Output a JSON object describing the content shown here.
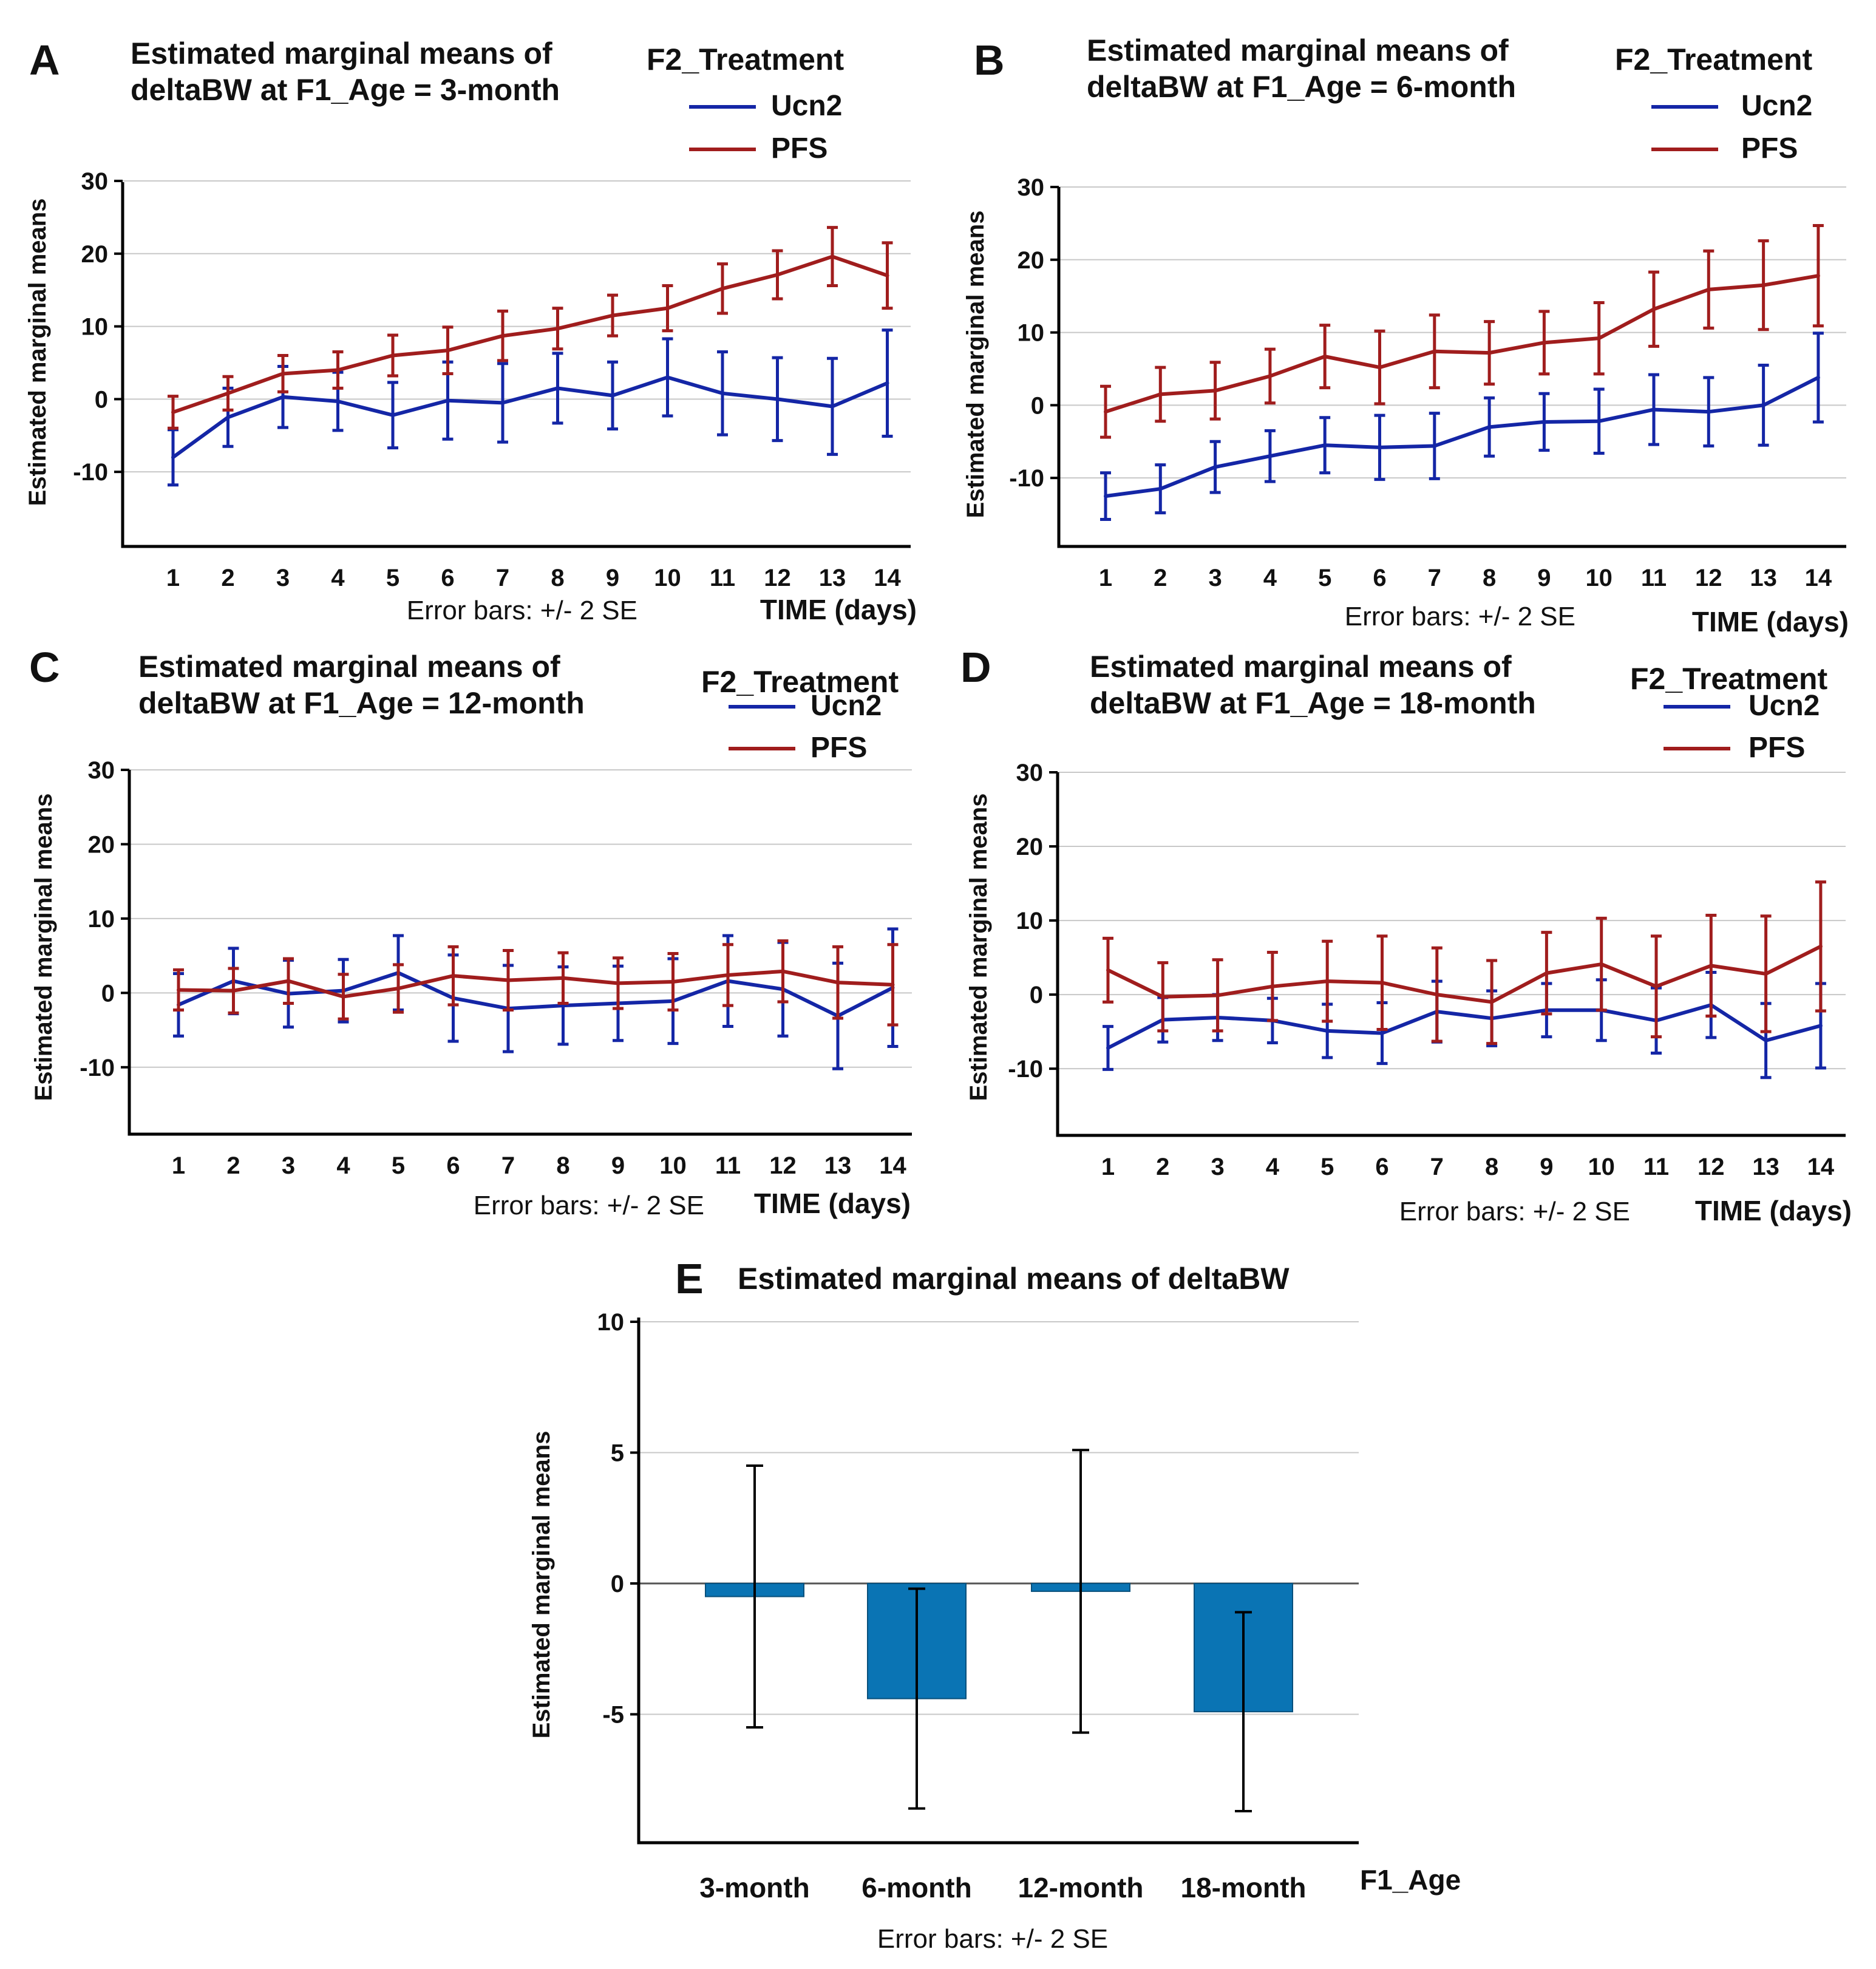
{
  "figure": {
    "colors": {
      "Ucn2": "#1426a6",
      "PFS": "#a01d1d",
      "bar": "#0a74b4",
      "grid": "#c8c8c8"
    },
    "common": {
      "ylabel": "Estimated marginal means",
      "xlabel": "TIME (days)",
      "footnote": "Error bars: +/- 2 SE",
      "legend_title": "F2_Treatment",
      "legend_labels": [
        "Ucn2",
        "PFS"
      ]
    }
  },
  "chart_data": [
    {
      "id": "A",
      "type": "line",
      "panel_letter": "A",
      "title_line1": "Estimated marginal means of",
      "title_line2": "deltaBW at F1_Age = 3-month",
      "x": [
        1,
        2,
        3,
        4,
        5,
        6,
        7,
        8,
        9,
        10,
        11,
        12,
        13,
        14
      ],
      "xticks": [
        "1",
        "2",
        "3",
        "4",
        "5",
        "6",
        "7",
        "8",
        "9",
        "10",
        "11",
        "12",
        "13",
        "14"
      ],
      "yticks": [
        -10,
        0,
        10,
        20,
        30
      ],
      "ylim": [
        -19,
        30
      ],
      "grid": true,
      "legend": "top-right",
      "series": [
        {
          "name": "Ucn2",
          "values": [
            -8,
            -2.5,
            0.3,
            -0.3,
            -2.2,
            -0.2,
            -0.5,
            1.5,
            0.5,
            3,
            0.8,
            0,
            -1,
            2.2
          ],
          "err": [
            3.8,
            4,
            4.2,
            4,
            4.5,
            5.3,
            5.4,
            4.8,
            4.6,
            5.3,
            5.7,
            5.7,
            6.6,
            7.3
          ]
        },
        {
          "name": "PFS",
          "values": [
            -1.8,
            0.8,
            3.5,
            4,
            6,
            6.7,
            8.7,
            9.7,
            11.5,
            12.5,
            15.2,
            17.1,
            19.6,
            17
          ]
        },
        {
          "name": "PFS-err",
          "values": [
            2.2,
            2.3,
            2.5,
            2.5,
            2.8,
            3.2,
            3.4,
            2.8,
            2.8,
            3.1,
            3.4,
            3.3,
            4,
            4.5
          ]
        }
      ]
    },
    {
      "id": "B",
      "type": "line",
      "panel_letter": "B",
      "title_line1": "Estimated marginal means of",
      "title_line2": "deltaBW  at F1_Age = 6-month",
      "x": [
        1,
        2,
        3,
        4,
        5,
        6,
        7,
        8,
        9,
        10,
        11,
        12,
        13,
        14
      ],
      "xticks": [
        "1",
        "2",
        "3",
        "4",
        "5",
        "6",
        "7",
        "8",
        "9",
        "10",
        "11",
        "12",
        "13",
        "14"
      ],
      "yticks": [
        -10,
        0,
        10,
        20,
        30
      ],
      "ylim": [
        -19,
        30
      ],
      "grid": true,
      "legend": "top-right",
      "series": [
        {
          "name": "Ucn2",
          "values": [
            -12.5,
            -11.5,
            -8.5,
            -7,
            -5.5,
            -5.8,
            -5.6,
            -3,
            -2.3,
            -2.2,
            -0.6,
            -0.9,
            0,
            3.8
          ],
          "err": [
            3.2,
            3.3,
            3.5,
            3.5,
            3.8,
            4.4,
            4.5,
            4,
            3.9,
            4.4,
            4.8,
            4.7,
            5.5,
            6.1
          ]
        },
        {
          "name": "PFS",
          "values": [
            -0.9,
            1.5,
            2,
            4,
            6.7,
            5.2,
            7.4,
            7.2,
            8.6,
            9.2,
            13.2,
            15.9,
            16.5,
            17.8
          ]
        },
        {
          "name": "PFS-err",
          "values": [
            3.5,
            3.7,
            3.9,
            3.7,
            4.3,
            5,
            5,
            4.3,
            4.3,
            4.9,
            5.1,
            5.3,
            6.1,
            6.9
          ]
        }
      ]
    },
    {
      "id": "C",
      "type": "line",
      "panel_letter": "C",
      "title_line1": "Estimated marginal means of",
      "title_line2": "deltaBW at F1_Age = 12-month",
      "x": [
        1,
        2,
        3,
        4,
        5,
        6,
        7,
        8,
        9,
        10,
        11,
        12,
        13,
        14
      ],
      "xticks": [
        "1",
        "2",
        "3",
        "4",
        "5",
        "6",
        "7",
        "8",
        "9",
        "10",
        "11",
        "12",
        "13",
        "14"
      ],
      "yticks": [
        -10,
        0,
        10,
        20,
        30
      ],
      "ylim": [
        -19,
        30
      ],
      "grid": true,
      "legend": "top-right",
      "series": [
        {
          "name": "Ucn2",
          "values": [
            -1.6,
            1.6,
            -0.1,
            0.3,
            2.7,
            -0.7,
            -2.1,
            -1.7,
            -1.4,
            -1.1,
            1.6,
            0.5,
            -3.1,
            0.7
          ],
          "err": [
            4.2,
            4.4,
            4.5,
            4.2,
            5,
            5.8,
            5.8,
            5.2,
            5,
            5.7,
            6.1,
            6.3,
            7.1,
            7.9
          ]
        },
        {
          "name": "PFS",
          "values": [
            0.4,
            0.3,
            1.6,
            -0.5,
            0.6,
            2.3,
            1.7,
            2,
            1.3,
            1.5,
            2.4,
            2.9,
            1.4,
            1.1
          ]
        },
        {
          "name": "PFS-err",
          "values": [
            2.7,
            3,
            3,
            3,
            3.2,
            3.9,
            4,
            3.4,
            3.4,
            3.8,
            4.1,
            4.1,
            4.8,
            5.4
          ]
        }
      ]
    },
    {
      "id": "D",
      "type": "line",
      "panel_letter": "D",
      "title_line1": "Estimated marginal means of",
      "title_line2": "deltaBW at F1_Age = 18-month",
      "x": [
        1,
        2,
        3,
        4,
        5,
        6,
        7,
        8,
        9,
        10,
        11,
        12,
        13,
        14
      ],
      "xticks": [
        "1",
        "2",
        "3",
        "4",
        "5",
        "6",
        "7",
        "8",
        "9",
        "10",
        "11",
        "12",
        "13",
        "14"
      ],
      "yticks": [
        -10,
        0,
        10,
        20,
        30
      ],
      "ylim": [
        -19,
        30
      ],
      "grid": true,
      "legend": "top-right",
      "series": [
        {
          "name": "Ucn2",
          "values": [
            -7.2,
            -3.4,
            -3.1,
            -3.5,
            -4.9,
            -5.2,
            -2.3,
            -3.2,
            -2.1,
            -2.1,
            -3.5,
            -1.4,
            -6.2,
            -4.2
          ],
          "err": [
            2.9,
            3,
            3.1,
            3,
            3.6,
            4.1,
            4.1,
            3.7,
            3.6,
            4.1,
            4.4,
            4.4,
            5,
            5.7
          ]
        },
        {
          "name": "PFS",
          "values": [
            3.3,
            -0.3,
            -0.1,
            1.1,
            1.8,
            1.6,
            0,
            -1,
            2.9,
            4.1,
            1.1,
            3.9,
            2.8,
            6.5
          ]
        },
        {
          "name": "PFS-err",
          "values": [
            4.3,
            4.6,
            4.8,
            4.6,
            5.4,
            6.3,
            6.3,
            5.6,
            5.5,
            6.2,
            6.8,
            6.8,
            7.8,
            8.7
          ]
        }
      ]
    },
    {
      "id": "E",
      "type": "bar",
      "panel_letter": "E",
      "title": "Estimated marginal means of deltaBW",
      "xlabel": "F1_Age",
      "ylabel": "Estimated marginal means",
      "footnote": "Error bars: +/- 2 SE",
      "categories": [
        "3-month",
        "6-month",
        "12-month",
        "18-month"
      ],
      "values": [
        -0.5,
        -4.4,
        -0.3,
        -4.9
      ],
      "errors": [
        5.0,
        4.2,
        5.4,
        3.8
      ],
      "yticks": [
        -5,
        0,
        5,
        10
      ],
      "ytick_labels": [
        "-5",
        "0",
        "5",
        "10"
      ],
      "ylim": [
        -10,
        10
      ],
      "grid": true
    }
  ]
}
